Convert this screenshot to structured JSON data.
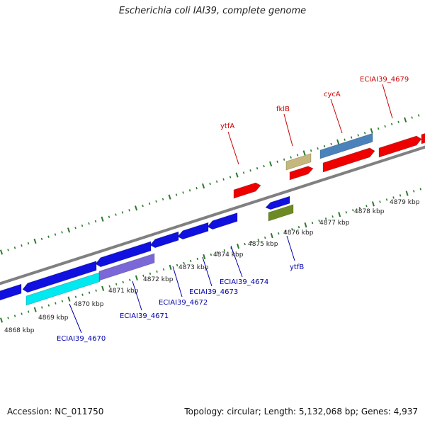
{
  "title": "Escherichia coli IAI39, complete genome",
  "accession": "Accession: NC_011750",
  "summary": "Topology: circular; Length: 5,132,068 bp; Genes: 4,937",
  "colors": {
    "backbone": "#808080",
    "tick": "#2a7a2a",
    "forward_label": "#cc0000",
    "reverse_label": "#0000aa",
    "kbp_label": "#222222"
  },
  "scale_labels": [
    {
      "kbp": "4868 kbp"
    },
    {
      "kbp": "4869 kbp"
    },
    {
      "kbp": "4870 kbp"
    },
    {
      "kbp": "4871 kbp"
    },
    {
      "kbp": "4872 kbp"
    },
    {
      "kbp": "4873 kbp"
    },
    {
      "kbp": "4874 kbp"
    },
    {
      "kbp": "4875 kbp"
    },
    {
      "kbp": "4876 kbp"
    },
    {
      "kbp": "4877 kbp"
    },
    {
      "kbp": "4878 kbp"
    },
    {
      "kbp": "4879 kbp"
    }
  ],
  "gene_labels": {
    "forward": [
      "ytfA",
      "fklB",
      "cycA",
      "ECIAI39_4679"
    ],
    "reverse": [
      "ECIAI39_4670",
      "ECIAI39_4671",
      "ECIAI39_4672",
      "ECIAI39_4673",
      "ECIAI39_4674",
      "ytfB"
    ]
  }
}
